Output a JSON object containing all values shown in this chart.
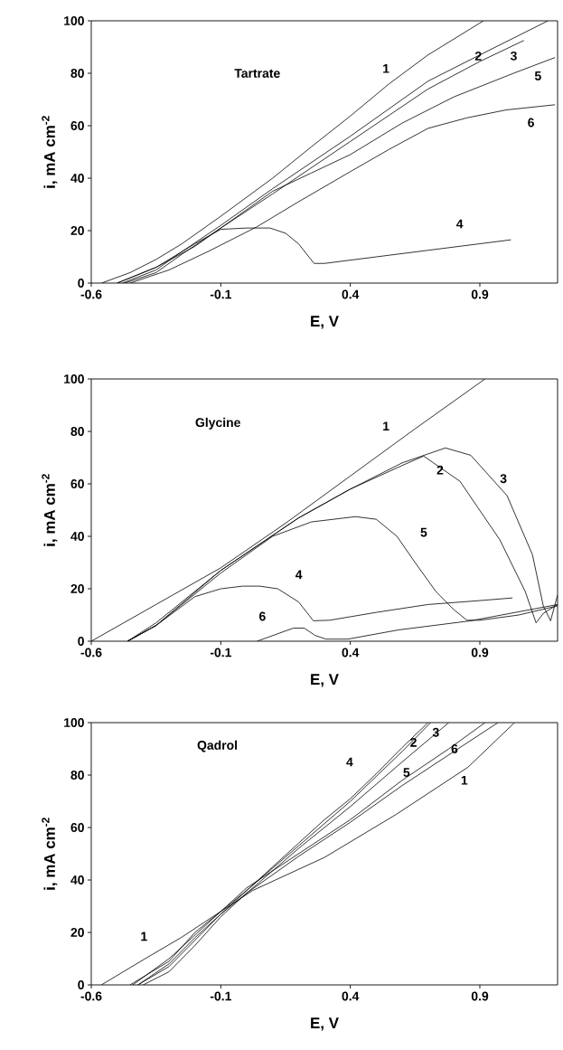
{
  "chart_data": [
    {
      "type": "line",
      "title": "Tartrate",
      "xlabel": "E, V",
      "ylabel": "i, mA cm$^{-2}$",
      "xlim": [
        -0.6,
        1.2
      ],
      "ylim": [
        0,
        100
      ],
      "xticks": [
        -0.6,
        -0.1,
        0.4,
        0.9
      ],
      "yticks": [
        0,
        20,
        40,
        60,
        80,
        100
      ],
      "marker": "none",
      "line_style": "solid",
      "series": [
        {
          "color": "#000000",
          "x": [
            -0.56,
            -0.45,
            -0.35,
            -0.25,
            -0.1,
            0.1,
            0.25,
            0.4,
            0.55,
            0.7,
            0.914
          ],
          "values": [
            0,
            4,
            9,
            15,
            25.5,
            40,
            52,
            63.7,
            76,
            87,
            100
          ]
        },
        {
          "color": "#000000",
          "x": [
            -0.48,
            -0.35,
            -0.25,
            -0.1,
            0.1,
            0.4,
            0.7,
            0.9,
            1.163
          ],
          "values": [
            0,
            5,
            12,
            22,
            36,
            56,
            77,
            87,
            100
          ]
        },
        {
          "color": "#000000",
          "x": [
            -0.47,
            -0.35,
            -0.25,
            -0.1,
            0.1,
            0.4,
            0.7,
            0.9,
            1.07
          ],
          "values": [
            0,
            4,
            11,
            21,
            34,
            54,
            74,
            84.5,
            92.5
          ]
        },
        {
          "color": "#000000",
          "x": [
            -0.5,
            -0.35,
            -0.2,
            -0.1,
            0.0,
            0.09,
            0.15,
            0.2,
            0.24,
            0.26,
            0.3,
            0.5,
            0.7,
            0.9,
            1.02
          ],
          "values": [
            0,
            6,
            15,
            20.5,
            21,
            21,
            19,
            15,
            10,
            7.5,
            7.5,
            10,
            12.5,
            15,
            16.5
          ]
        },
        {
          "color": "#000000",
          "x": [
            -0.5,
            -0.35,
            -0.2,
            -0.1,
            0.1,
            0.25,
            0.4,
            0.6,
            0.8,
            1.03,
            1.19
          ],
          "values": [
            0,
            6,
            14,
            21,
            35,
            42,
            49,
            61,
            71,
            80,
            86
          ]
        },
        {
          "color": "#000000",
          "x": [
            -0.45,
            -0.3,
            -0.15,
            0.04,
            0.2,
            0.4,
            0.55,
            0.7,
            0.85,
            1.0,
            1.19
          ],
          "values": [
            0,
            5,
            12,
            21.5,
            31,
            42.5,
            51,
            59,
            63,
            66,
            68
          ]
        }
      ],
      "annotations": [
        "1",
        "2",
        "3",
        "5",
        "6",
        "4"
      ]
    },
    {
      "type": "line",
      "title": "Glycine",
      "xlabel": "E, V",
      "ylabel": "i, mA cm$^{-2}$",
      "xlim": [
        -0.6,
        1.2
      ],
      "ylim": [
        0,
        100
      ],
      "xticks": [
        -0.6,
        -0.1,
        0.4,
        0.9
      ],
      "yticks": [
        0,
        20,
        40,
        60,
        80,
        100
      ],
      "marker": "none",
      "line_style": "solid",
      "series": [
        {
          "color": "#000000",
          "x": [
            -0.6,
            -0.35,
            -0.1,
            0.15,
            0.4,
            0.65,
            0.92
          ],
          "values": [
            0,
            14,
            28,
            45,
            63,
            81,
            100
          ]
        },
        {
          "color": "#000000",
          "x": [
            -0.46,
            -0.35,
            -0.1,
            0.2,
            0.4,
            0.6,
            0.683,
            0.823,
            0.977,
            1.075,
            1.117,
            1.145,
            1.2
          ],
          "values": [
            0,
            7,
            27,
            47,
            58,
            67,
            70.6,
            61,
            38.7,
            19,
            7,
            10.6,
            14
          ]
        },
        {
          "color": "#000000",
          "x": [
            -0.46,
            -0.35,
            -0.1,
            0.2,
            0.4,
            0.6,
            0.767,
            0.865,
            1.005,
            1.103,
            1.145,
            1.173,
            1.2
          ],
          "values": [
            0,
            6,
            27,
            47,
            58,
            68,
            73.7,
            70.9,
            55.5,
            33,
            13.4,
            7.8,
            17.6
          ]
        },
        {
          "color": "#000000",
          "x": [
            -0.46,
            -0.35,
            -0.2,
            -0.1,
            -0.016,
            0.05,
            0.12,
            0.2,
            0.24,
            0.257,
            0.32,
            0.5,
            0.7,
            0.9,
            1.026
          ],
          "values": [
            0,
            6,
            17,
            20,
            21,
            21,
            20,
            15,
            10,
            7.8,
            8,
            11,
            14,
            15.5,
            16.5
          ]
        },
        {
          "color": "#000000",
          "x": [
            -0.46,
            -0.35,
            -0.2,
            -0.1,
            0.1,
            0.25,
            0.42,
            0.5,
            0.58,
            0.65,
            0.73,
            0.8,
            0.85,
            0.9,
            1.05,
            1.2
          ],
          "values": [
            0,
            6,
            18,
            26,
            40,
            45.5,
            47.5,
            46.5,
            40,
            30,
            19,
            12,
            8,
            8,
            10,
            13.5
          ]
        },
        {
          "color": "#000000",
          "x": [
            0.04,
            0.18,
            0.222,
            0.264,
            0.306,
            0.39,
            0.585,
            0.865,
            1.2
          ],
          "values": [
            0,
            5,
            5,
            2.2,
            0.8,
            0.8,
            4.3,
            7.8,
            14
          ]
        }
      ],
      "annotations": [
        "1",
        "2",
        "3",
        "5",
        "4",
        "6"
      ]
    },
    {
      "type": "line",
      "title": "Qadrol",
      "xlabel": "E, V",
      "ylabel": "i, mA cm$^{-2}$",
      "xlim": [
        -0.6,
        1.2
      ],
      "ylim": [
        0,
        100
      ],
      "xticks": [
        -0.6,
        -0.1,
        0.4,
        0.9
      ],
      "yticks": [
        0,
        20,
        40,
        60,
        80,
        100
      ],
      "marker": "none",
      "line_style": "solid",
      "series": [
        {
          "color": "#000000",
          "x": [
            -0.561,
            -0.392,
            -0.254,
            0.023,
            0.3,
            0.577,
            0.854,
            1.034
          ],
          "values": [
            0,
            10,
            18,
            36,
            48.6,
            65,
            83,
            100
          ]
        },
        {
          "color": "#000000",
          "x": [
            -0.42,
            -0.3,
            -0.2,
            -0.1,
            0.0,
            0.2,
            0.4,
            0.6,
            0.71
          ],
          "values": [
            0,
            7,
            17,
            27,
            36,
            53,
            70,
            89,
            100
          ]
        },
        {
          "color": "#000000",
          "x": [
            -0.4,
            -0.3,
            -0.2,
            -0.1,
            0.0,
            0.2,
            0.4,
            0.6,
            0.78
          ],
          "values": [
            0,
            5,
            15,
            26,
            35,
            52,
            68,
            85,
            100
          ]
        },
        {
          "color": "#000000",
          "x": [
            -0.45,
            -0.3,
            -0.2,
            -0.1,
            0.0,
            0.1,
            0.2,
            0.3,
            0.4,
            0.5,
            0.6,
            0.7
          ],
          "values": [
            0,
            9,
            20,
            28,
            36,
            45,
            54,
            63,
            71,
            80.5,
            90.5,
            100
          ]
        },
        {
          "color": "#000000",
          "x": [
            -0.44,
            -0.3,
            -0.2,
            -0.1,
            0.0,
            0.2,
            0.4,
            0.6,
            0.78,
            0.92
          ],
          "values": [
            0,
            10,
            19,
            28,
            37,
            50,
            63,
            78,
            90,
            100
          ]
        },
        {
          "color": "#000000",
          "x": [
            -0.42,
            -0.3,
            -0.2,
            -0.1,
            0.0,
            0.2,
            0.4,
            0.6,
            0.8,
            0.97
          ],
          "values": [
            0,
            8,
            18,
            27,
            35,
            49,
            62,
            76,
            89,
            100
          ]
        }
      ],
      "annotations": [
        "1",
        "4",
        "2",
        "3",
        "5",
        "6",
        "1"
      ]
    }
  ]
}
